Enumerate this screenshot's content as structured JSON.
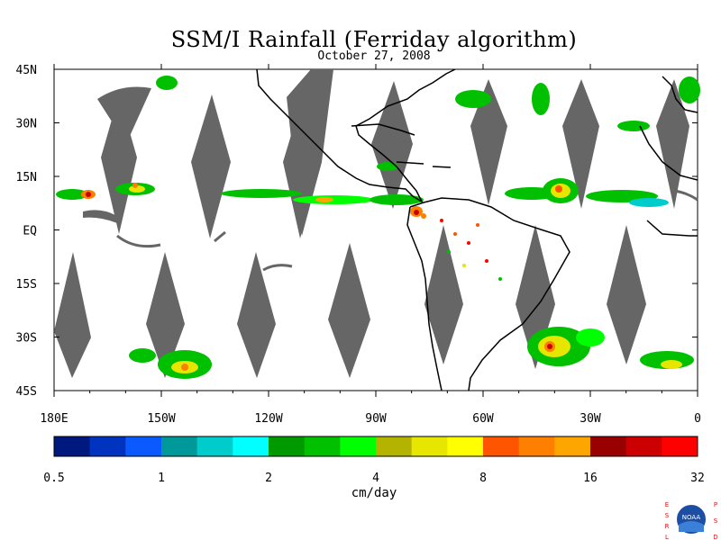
{
  "title": "SSM/I Rainfall (Ferriday algorithm)",
  "subtitle": "October 27, 2008",
  "map": {
    "lat_labels": [
      "45N",
      "30N",
      "15N",
      "EQ",
      "15S",
      "30S",
      "45S"
    ],
    "lon_labels": [
      "180E",
      "150W",
      "120W",
      "90W",
      "60W",
      "30W",
      "0"
    ],
    "lat_range": [
      -45,
      45
    ],
    "lon_range": [
      -180,
      0
    ],
    "no_data_color": "#666666",
    "coastline_color": "#000000"
  },
  "colorbar": {
    "units": "cm/day",
    "tick_labels": [
      "0.5",
      "1",
      "2",
      "4",
      "8",
      "16",
      "32"
    ],
    "colors": [
      "#00197f",
      "#0033c0",
      "#0a5aff",
      "#009999",
      "#00cccc",
      "#00ffff",
      "#009900",
      "#00c000",
      "#00ff00",
      "#b3b300",
      "#e6e600",
      "#ffff00",
      "#ff5500",
      "#ff7f00",
      "#ffa500",
      "#990000",
      "#cc0000",
      "#ff0000"
    ]
  },
  "logo": {
    "left_letters": "ESRL",
    "right_letters": "PSD",
    "center_text": "NOAA"
  }
}
